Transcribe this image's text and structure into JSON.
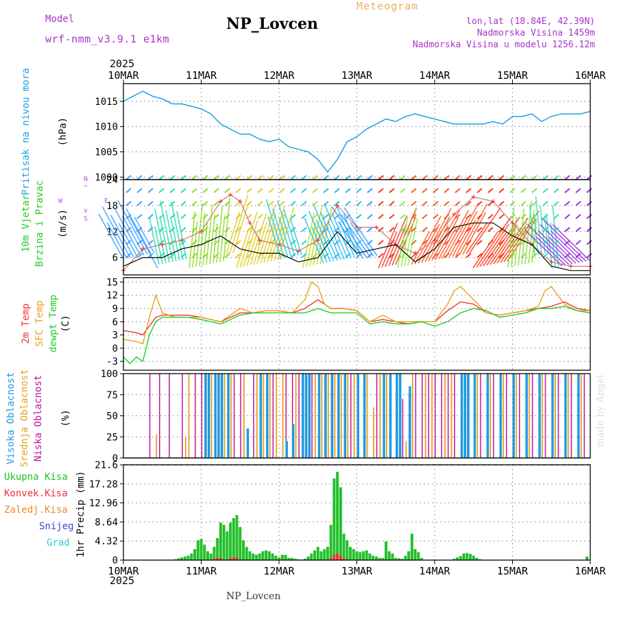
{
  "header": {
    "model_label": "Model",
    "model_name": "wrf-nmm_v3.9.1 e1km",
    "title": "NP_Lovcen",
    "meteogram_label": "Meteogram",
    "lonlat": "lon,lat (18.84E, 42.39N)",
    "altitude": "Nadmorska Visina 1459m",
    "model_altitude": "Nadmorska Visina u modelu 1256.12m",
    "credit": "made by Angel",
    "footer_station": "NP_Lovcen"
  },
  "time_axis": {
    "year": "2025",
    "ticks": [
      "10MAR",
      "11MAR",
      "12MAR",
      "13MAR",
      "14MAR",
      "15MAR",
      "16MAR"
    ]
  },
  "colors": {
    "pressure": "#1ea0e6",
    "temp2m": "#ee3333",
    "sfc": "#e6a020",
    "dewpt": "#22cc22",
    "cloud_high": "#1e9be0",
    "cloud_mid": "#e6a020",
    "cloud_low": "#c0139a",
    "precip_total": "#22c02a",
    "precip_conv": "#ee3333",
    "frame": "#000000",
    "label_pressure": "#1ea0e6",
    "label_wind": "#22cc22",
    "label_dir": "#bb55dd",
    "label_purple": "#aa33cc",
    "label_title_orange": "#e6b060"
  },
  "chart_data": [
    {
      "type": "line",
      "panel": "pressure",
      "title": "",
      "ylabel_side": "Pritisak na nivou mora",
      "ylabel": "(hPa)",
      "ylim": [
        999.5,
        1018.5
      ],
      "yticks": [
        "1000",
        "1005",
        "1010",
        "1015"
      ],
      "series": [
        {
          "name": "Pritisak na nivou mora",
          "x": [
            0,
            3,
            6,
            9,
            12,
            15,
            18,
            21,
            24,
            27,
            30,
            33,
            36,
            39,
            42,
            45,
            48,
            51,
            54,
            57,
            60,
            63,
            66,
            69,
            72,
            75,
            78,
            81,
            84,
            87,
            90,
            93,
            96,
            99,
            102,
            105,
            108,
            111,
            114,
            117,
            120,
            123,
            126,
            129,
            132,
            135,
            138,
            141,
            144
          ],
          "values": [
            1015,
            1016,
            1017,
            1016,
            1015.5,
            1014.5,
            1014.5,
            1014,
            1013.5,
            1012.5,
            1010.5,
            1009.5,
            1008.5,
            1008.5,
            1007.5,
            1007,
            1007.5,
            1006,
            1005.5,
            1005,
            1003.5,
            1001,
            1003.5,
            1007,
            1008,
            1009.5,
            1010.5,
            1011.5,
            1011,
            1012,
            1012.5,
            1012,
            1011.5,
            1011,
            1010.5,
            1010.5,
            1010.5,
            1010.5,
            1011,
            1010.5,
            1012,
            1012,
            1012.5,
            1011,
            1012,
            1012.5,
            1012.5,
            1012.5,
            1013
          ]
        }
      ]
    },
    {
      "type": "line",
      "panel": "wind",
      "title": "",
      "ylabel_side": [
        "10m Vjetar",
        "Brzina i Pravac"
      ],
      "ylabel": "(m/s)",
      "direction_key": [
        "N",
        "^",
        "E",
        "W",
        "v",
        "S"
      ],
      "ylim": [
        2,
        24
      ],
      "yticks": [
        "6",
        "12",
        "18",
        "24"
      ],
      "series": [
        {
          "name": "gust",
          "x": [
            0,
            6,
            12,
            18,
            24,
            30,
            33,
            36,
            39,
            42,
            48,
            54,
            60,
            66,
            72,
            78,
            84,
            90,
            96,
            102,
            108,
            114,
            120,
            126,
            132,
            138,
            144
          ],
          "values": [
            3,
            8,
            9,
            10,
            12,
            19,
            20.5,
            19,
            14,
            10,
            9,
            7.5,
            10,
            18,
            13,
            13,
            9,
            7,
            10,
            16,
            20,
            19,
            14,
            9,
            5,
            4,
            4
          ]
        },
        {
          "name": "speed",
          "x": [
            0,
            6,
            12,
            18,
            24,
            30,
            36,
            42,
            48,
            54,
            60,
            66,
            72,
            78,
            84,
            90,
            96,
            102,
            108,
            114,
            120,
            126,
            132,
            138,
            144
          ],
          "values": [
            4,
            6,
            6,
            8,
            9,
            11,
            8,
            7,
            7,
            5,
            6,
            12,
            7,
            8,
            9,
            5,
            8,
            13,
            14,
            14,
            11,
            9,
            4,
            3,
            3
          ]
        }
      ],
      "arrow_rows": [
        6,
        9,
        12,
        15,
        18,
        21,
        24
      ]
    },
    {
      "type": "line",
      "panel": "temperature",
      "title": "",
      "ylabel_side": [
        "2m Temp",
        "SFC Temp",
        "dewpt Temp"
      ],
      "ylabel": "(C)",
      "ylim": [
        -5,
        16
      ],
      "yticks": [
        "-3",
        "0",
        "3",
        "6",
        "9",
        "12",
        "15"
      ],
      "series": [
        {
          "name": "2m Temp",
          "x": [
            0,
            4,
            6,
            8,
            10,
            12,
            16,
            20,
            24,
            30,
            36,
            40,
            44,
            48,
            52,
            56,
            60,
            64,
            68,
            72,
            76,
            80,
            84,
            88,
            92,
            96,
            100,
            104,
            108,
            112,
            116,
            120,
            124,
            128,
            132,
            136,
            140,
            144
          ],
          "values": [
            4,
            3.5,
            3,
            5,
            7,
            7.5,
            7.5,
            7.5,
            7,
            6,
            8,
            8,
            8.5,
            8.5,
            8,
            9,
            11,
            9,
            9,
            8.5,
            6,
            6.5,
            6,
            5.5,
            6,
            6,
            8.5,
            10.5,
            10,
            8,
            7.5,
            8,
            8.5,
            9,
            9.5,
            10.5,
            9,
            8.5
          ]
        },
        {
          "name": "SFC Temp",
          "x": [
            0,
            4,
            6,
            8,
            10,
            12,
            16,
            20,
            24,
            30,
            36,
            40,
            44,
            48,
            52,
            56,
            58,
            60,
            62,
            64,
            68,
            72,
            76,
            80,
            84,
            88,
            92,
            96,
            100,
            102,
            104,
            108,
            112,
            116,
            120,
            124,
            128,
            130,
            132,
            136,
            140,
            144
          ],
          "values": [
            2,
            1.5,
            1,
            7,
            12,
            8,
            7,
            7,
            7,
            6,
            9,
            8,
            8.5,
            8.5,
            8,
            11,
            15,
            14,
            10,
            9,
            9,
            8.5,
            6,
            7.5,
            6,
            6,
            6,
            6,
            10,
            13,
            14,
            11,
            8,
            7.5,
            8,
            8.5,
            9.5,
            13,
            14,
            10,
            8.5,
            8.5
          ]
        },
        {
          "name": "dewpt Temp",
          "x": [
            0,
            2,
            4,
            6,
            8,
            10,
            12,
            16,
            20,
            24,
            30,
            36,
            40,
            44,
            48,
            52,
            56,
            60,
            64,
            68,
            72,
            76,
            80,
            84,
            88,
            92,
            96,
            100,
            104,
            108,
            112,
            116,
            120,
            124,
            128,
            132,
            136,
            140,
            144
          ],
          "values": [
            -2,
            -3.5,
            -2,
            -3,
            3,
            6,
            7,
            7,
            7,
            6.5,
            5.5,
            7.5,
            8,
            8,
            8,
            8,
            8,
            9,
            8,
            8,
            8,
            5.5,
            6,
            5.5,
            5.5,
            6,
            5,
            6,
            8,
            9,
            8.5,
            7,
            7.5,
            8,
            9,
            9,
            9.5,
            8.5,
            8
          ]
        }
      ]
    },
    {
      "type": "bar",
      "panel": "clouds",
      "title": "",
      "ylabel_side": [
        "Visoka Oblacnost",
        "Srednja Oblacnost",
        "Niska Oblacnost"
      ],
      "ylabel": "(%)",
      "ylim": [
        0,
        100
      ],
      "yticks": [
        "0",
        "25",
        "50",
        "75",
        "100"
      ],
      "series": [
        {
          "name": "Niska Oblacnost",
          "x": [
            8,
            11,
            14,
            18,
            22,
            24,
            26,
            30,
            34,
            36,
            40,
            46,
            50,
            52,
            54,
            58,
            62,
            64,
            66,
            68,
            70,
            74,
            78,
            82,
            84,
            86,
            88,
            90,
            92,
            94,
            96,
            98,
            100,
            102,
            106,
            110,
            114,
            118,
            122,
            126,
            130,
            134,
            138,
            142
          ],
          "values": [
            100,
            100,
            100,
            100,
            100,
            100,
            100,
            100,
            100,
            100,
            100,
            100,
            100,
            100,
            100,
            100,
            100,
            100,
            100,
            100,
            100,
            100,
            100,
            100,
            80,
            70,
            75,
            100,
            100,
            100,
            100,
            100,
            100,
            100,
            100,
            100,
            100,
            100,
            100,
            100,
            100,
            100,
            100,
            100
          ]
        },
        {
          "name": "Srednja Oblacnost",
          "x": [
            10,
            19,
            20,
            25,
            27,
            29,
            31,
            33,
            37,
            41,
            43,
            45,
            47,
            49,
            53,
            55,
            57,
            59,
            61,
            63,
            65,
            67,
            69,
            71,
            75,
            77,
            79,
            81,
            87,
            89,
            93,
            95,
            99,
            101,
            105,
            109,
            113,
            117,
            121,
            125,
            129,
            133,
            137,
            141
          ],
          "values": [
            28,
            25,
            100,
            100,
            100,
            100,
            100,
            100,
            100,
            100,
            100,
            100,
            100,
            100,
            100,
            35,
            100,
            100,
            100,
            100,
            100,
            100,
            100,
            100,
            100,
            60,
            100,
            100,
            20,
            100,
            100,
            100,
            100,
            100,
            100,
            100,
            100,
            100,
            100,
            100,
            100,
            100,
            100,
            100
          ]
        },
        {
          "name": "Visoka Oblacnost",
          "x": [
            25,
            26,
            28,
            29,
            30,
            32,
            38,
            42,
            44,
            50,
            52,
            55,
            56,
            57,
            60,
            62,
            64,
            66,
            68,
            72,
            74,
            80,
            82,
            84,
            85,
            88,
            104,
            105,
            106,
            108,
            112,
            116,
            120,
            124,
            128,
            132,
            136,
            140
          ],
          "values": [
            100,
            100,
            100,
            100,
            100,
            100,
            35,
            100,
            100,
            20,
            40,
            100,
            100,
            100,
            100,
            100,
            100,
            100,
            100,
            100,
            100,
            100,
            100,
            100,
            100,
            85,
            100,
            100,
            100,
            100,
            100,
            100,
            100,
            100,
            100,
            100,
            100,
            100
          ]
        }
      ]
    },
    {
      "type": "bar",
      "panel": "precipitation",
      "title": "",
      "ylabel_side": [
        "Ukupna Kisa",
        "Konvek.Kisa",
        "Zaledj.Kisa",
        "Snijeg",
        "Grad"
      ],
      "ylabel": "1hr Precip (mm)",
      "ylim": [
        0,
        21.6
      ],
      "yticks": [
        "0",
        "4.32",
        "8.64",
        "12.96",
        "17.28",
        "21.6"
      ],
      "series": [
        {
          "name": "Ukupna Kisa",
          "x": [
            16,
            17,
            18,
            19,
            20,
            21,
            22,
            23,
            24,
            25,
            26,
            27,
            28,
            29,
            30,
            31,
            32,
            33,
            34,
            35,
            36,
            37,
            38,
            39,
            40,
            41,
            42,
            43,
            44,
            45,
            46,
            47,
            48,
            49,
            50,
            51,
            52,
            53,
            54,
            55,
            56,
            57,
            58,
            59,
            60,
            61,
            62,
            63,
            64,
            65,
            66,
            67,
            68,
            69,
            70,
            71,
            72,
            73,
            74,
            75,
            76,
            77,
            78,
            79,
            80,
            81,
            82,
            83,
            84,
            85,
            86,
            87,
            88,
            89,
            90,
            91,
            92,
            102,
            103,
            104,
            105,
            106,
            107,
            108,
            109,
            110,
            143
          ],
          "values": [
            0.2,
            0.4,
            0.6,
            0.8,
            1.0,
            1.5,
            2.5,
            4.5,
            4.8,
            3.5,
            2.0,
            1.5,
            3.0,
            5.0,
            8.5,
            8.0,
            6.5,
            8.5,
            9.5,
            10.2,
            7.5,
            4.5,
            3.0,
            2.0,
            1.5,
            1.2,
            1.5,
            2.0,
            2.2,
            2.0,
            1.5,
            1.0,
            0.6,
            1.2,
            1.2,
            0.5,
            0.5,
            0.3,
            0.2,
            0.1,
            0.3,
            0.8,
            1.5,
            2.2,
            3.0,
            2.0,
            2.5,
            3.0,
            8.0,
            18.5,
            20.0,
            16.5,
            6.0,
            4.5,
            3.0,
            2.5,
            2.0,
            1.8,
            2.0,
            2.2,
            1.5,
            1.0,
            0.8,
            0.5,
            0.5,
            4.2,
            2.0,
            1.5,
            0.5,
            0.4,
            0.3,
            1.0,
            2.0,
            6.0,
            2.5,
            1.8,
            0.5,
            0.3,
            0.6,
            0.9,
            1.5,
            1.6,
            1.4,
            1.0,
            0.5,
            0.2,
            0.8
          ]
        },
        {
          "name": "Konvek.Kisa",
          "x": [
            28,
            29,
            30,
            33,
            34,
            35,
            64,
            65,
            66,
            67,
            68
          ],
          "values": [
            0.3,
            0.4,
            0.5,
            0.4,
            0.6,
            0.6,
            0.5,
            1.2,
            1.5,
            1.0,
            0.4
          ]
        }
      ]
    }
  ]
}
